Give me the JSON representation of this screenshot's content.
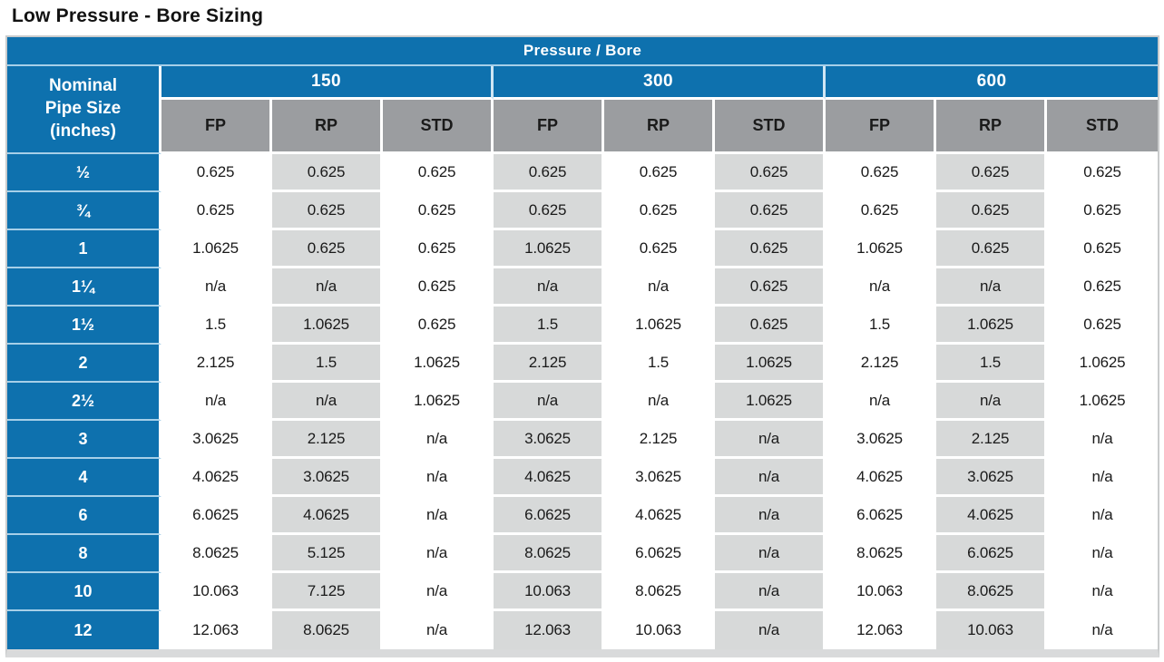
{
  "title": "Low Pressure - Bore Sizing",
  "table": {
    "main_header": "Pressure / Bore",
    "row_header_title": "Nominal Pipe Size (inches)",
    "groups": [
      "150",
      "300",
      "600"
    ],
    "sub_headers": [
      "FP",
      "RP",
      "STD"
    ],
    "rows": [
      {
        "size": "½",
        "values": [
          "0.625",
          "0.625",
          "0.625",
          "0.625",
          "0.625",
          "0.625",
          "0.625",
          "0.625",
          "0.625"
        ]
      },
      {
        "size": "¾",
        "values": [
          "0.625",
          "0.625",
          "0.625",
          "0.625",
          "0.625",
          "0.625",
          "0.625",
          "0.625",
          "0.625"
        ]
      },
      {
        "size": "1",
        "values": [
          "1.0625",
          "0.625",
          "0.625",
          "1.0625",
          "0.625",
          "0.625",
          "1.0625",
          "0.625",
          "0.625"
        ]
      },
      {
        "size": "1¼",
        "values": [
          "n/a",
          "n/a",
          "0.625",
          "n/a",
          "n/a",
          "0.625",
          "n/a",
          "n/a",
          "0.625"
        ]
      },
      {
        "size": "1½",
        "values": [
          "1.5",
          "1.0625",
          "0.625",
          "1.5",
          "1.0625",
          "0.625",
          "1.5",
          "1.0625",
          "0.625"
        ]
      },
      {
        "size": "2",
        "values": [
          "2.125",
          "1.5",
          "1.0625",
          "2.125",
          "1.5",
          "1.0625",
          "2.125",
          "1.5",
          "1.0625"
        ]
      },
      {
        "size": "2½",
        "values": [
          "n/a",
          "n/a",
          "1.0625",
          "n/a",
          "n/a",
          "1.0625",
          "n/a",
          "n/a",
          "1.0625"
        ]
      },
      {
        "size": "3",
        "values": [
          "3.0625",
          "2.125",
          "n/a",
          "3.0625",
          "2.125",
          "n/a",
          "3.0625",
          "2.125",
          "n/a"
        ]
      },
      {
        "size": "4",
        "values": [
          "4.0625",
          "3.0625",
          "n/a",
          "4.0625",
          "3.0625",
          "n/a",
          "4.0625",
          "3.0625",
          "n/a"
        ]
      },
      {
        "size": "6",
        "values": [
          "6.0625",
          "4.0625",
          "n/a",
          "6.0625",
          "4.0625",
          "n/a",
          "6.0625",
          "4.0625",
          "n/a"
        ]
      },
      {
        "size": "8",
        "values": [
          "8.0625",
          "5.125",
          "n/a",
          "8.0625",
          "6.0625",
          "n/a",
          "8.0625",
          "6.0625",
          "n/a"
        ]
      },
      {
        "size": "10",
        "values": [
          "10.063",
          "7.125",
          "n/a",
          "10.063",
          "8.0625",
          "n/a",
          "10.063",
          "8.0625",
          "n/a"
        ]
      },
      {
        "size": "12",
        "values": [
          "12.063",
          "8.0625",
          "n/a",
          "12.063",
          "10.063",
          "n/a",
          "12.063",
          "10.063",
          "n/a"
        ]
      }
    ]
  },
  "colors": {
    "header_blue": "#0e71ae",
    "subheader_gray": "#9b9da0",
    "shaded_cell_gray": "#d7d9d9",
    "divider_light_blue": "#a6cfe8"
  }
}
